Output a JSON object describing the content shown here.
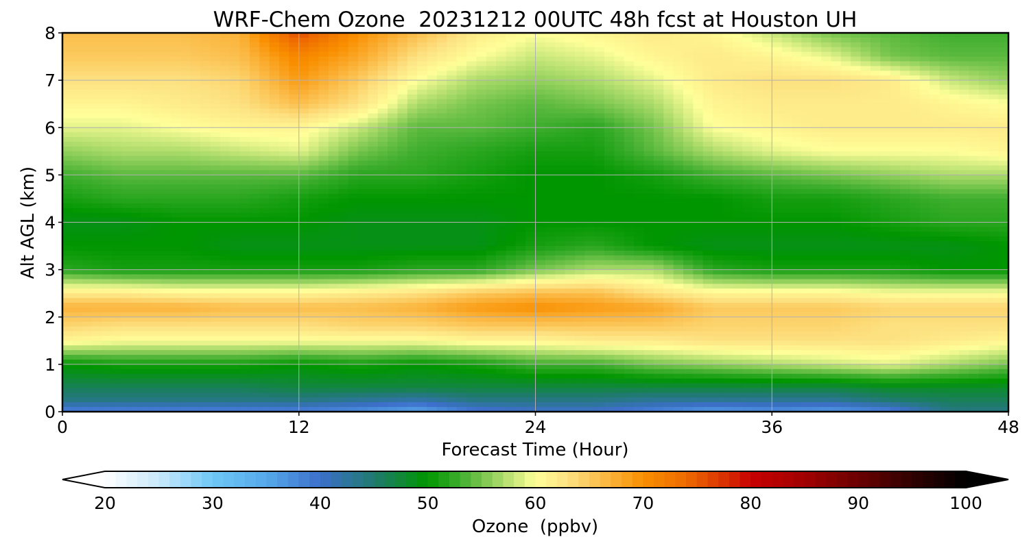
{
  "chart_data": {
    "type": "heatmap",
    "title": "WRF-Chem Ozone  20231212 00UTC 48h fcst at Houston UH",
    "xlabel": "Forecast Time (Hour)",
    "ylabel": "Alt AGL (km)",
    "xlim": [
      0,
      48
    ],
    "ylim": [
      0,
      8
    ],
    "xticks": [
      0,
      12,
      24,
      36,
      48
    ],
    "yticks": [
      0,
      1,
      2,
      3,
      4,
      5,
      6,
      7,
      8
    ],
    "grid": true,
    "z_units": "ppbv",
    "x": [
      0,
      3,
      6,
      9,
      12,
      15,
      18,
      21,
      24,
      27,
      30,
      33,
      36,
      39,
      42,
      45,
      48
    ],
    "y": [
      0,
      0.25,
      0.5,
      1,
      1.5,
      1.8,
      2.2,
      2.5,
      3,
      3.5,
      4,
      4.5,
      5,
      5.5,
      6,
      6.5,
      7,
      7.5,
      8
    ],
    "z": [
      [
        38,
        38,
        38,
        38,
        38,
        37,
        35,
        39,
        40,
        40,
        38,
        36,
        37,
        36,
        38,
        44,
        44
      ],
      [
        44,
        44,
        44,
        44,
        44,
        43,
        42,
        44,
        44,
        44,
        43,
        43,
        43,
        43,
        45,
        46,
        46
      ],
      [
        46,
        46,
        46,
        46,
        47,
        47,
        47,
        47,
        47,
        47,
        47,
        47,
        47,
        47,
        48,
        48,
        48
      ],
      [
        50,
        51,
        51,
        51,
        50,
        51,
        50,
        51,
        53,
        53,
        55,
        56,
        57,
        58,
        59,
        57,
        55
      ],
      [
        61,
        60,
        60,
        60,
        60,
        60,
        60,
        61,
        61,
        62,
        62,
        63,
        63,
        63,
        63,
        62,
        61
      ],
      [
        64,
        63,
        63,
        63,
        63,
        64,
        64,
        65,
        65,
        65,
        65,
        64,
        64,
        64,
        63,
        63,
        63
      ],
      [
        67,
        67,
        67,
        66,
        66,
        66,
        67,
        69,
        70,
        69,
        68,
        65,
        65,
        65,
        64,
        64,
        64
      ],
      [
        62,
        62,
        61,
        61,
        61,
        62,
        63,
        65,
        66,
        66,
        63,
        61,
        61,
        61,
        60,
        60,
        60
      ],
      [
        52,
        51,
        51,
        51,
        51,
        51,
        52,
        52,
        55,
        57,
        57,
        52,
        51,
        51,
        51,
        50,
        50
      ],
      [
        50,
        50,
        50,
        49,
        49,
        49,
        49,
        49,
        51,
        52,
        50,
        49,
        49,
        49,
        49,
        49,
        50
      ],
      [
        49,
        49,
        50,
        50,
        50,
        49,
        49,
        49,
        50,
        50,
        50,
        50,
        50,
        50,
        51,
        52,
        52
      ],
      [
        51,
        52,
        52,
        52,
        51,
        50,
        50,
        50,
        50,
        50,
        50,
        50,
        51,
        51,
        52,
        53,
        53
      ],
      [
        53,
        54,
        54,
        54,
        54,
        52,
        52,
        51,
        50,
        50,
        51,
        53,
        54,
        55,
        56,
        57,
        57
      ],
      [
        56,
        57,
        57,
        58,
        59,
        55,
        53,
        52,
        51,
        51,
        54,
        57,
        59,
        60,
        60,
        60,
        61
      ],
      [
        59,
        59,
        60,
        61,
        61,
        58,
        54,
        54,
        53,
        52,
        55,
        60,
        61,
        62,
        62,
        62,
        62
      ],
      [
        61,
        61,
        62,
        63,
        66,
        63,
        57,
        55,
        54,
        55,
        57,
        61,
        62,
        62,
        62,
        61,
        60
      ],
      [
        63,
        63,
        63,
        64,
        69,
        65,
        60,
        57,
        56,
        57,
        59,
        62,
        63,
        63,
        62,
        58,
        56
      ],
      [
        65,
        65,
        65,
        66,
        71,
        68,
        63,
        60,
        58,
        59,
        61,
        62,
        61,
        59,
        55,
        54,
        54
      ],
      [
        66,
        66,
        66,
        67,
        76,
        70,
        66,
        62,
        60,
        61,
        62,
        61,
        58,
        55,
        54,
        53,
        53
      ]
    ],
    "colorbar": {
      "label": "Ozone  (ppbv)",
      "min": 20,
      "max": 100,
      "ticks": [
        20,
        30,
        40,
        50,
        60,
        70,
        80,
        90,
        100
      ],
      "extend": "both",
      "stops": [
        {
          "v": 20,
          "color": "#ffffff"
        },
        {
          "v": 25,
          "color": "#c8e9fb"
        },
        {
          "v": 30,
          "color": "#6fc7f6"
        },
        {
          "v": 35,
          "color": "#55a9ea"
        },
        {
          "v": 40,
          "color": "#3d6fcb"
        },
        {
          "v": 45,
          "color": "#1f7a6e"
        },
        {
          "v": 50,
          "color": "#009600"
        },
        {
          "v": 53,
          "color": "#3fae2f"
        },
        {
          "v": 56,
          "color": "#92d05c"
        },
        {
          "v": 60,
          "color": "#ffff99"
        },
        {
          "v": 63,
          "color": "#fde181"
        },
        {
          "v": 66,
          "color": "#fbbe4c"
        },
        {
          "v": 70,
          "color": "#f98f00"
        },
        {
          "v": 74,
          "color": "#ee6a00"
        },
        {
          "v": 78,
          "color": "#d62a00"
        },
        {
          "v": 80,
          "color": "#c80000"
        },
        {
          "v": 85,
          "color": "#a10000"
        },
        {
          "v": 90,
          "color": "#6a0000"
        },
        {
          "v": 95,
          "color": "#300000"
        },
        {
          "v": 100,
          "color": "#000000"
        }
      ]
    }
  }
}
